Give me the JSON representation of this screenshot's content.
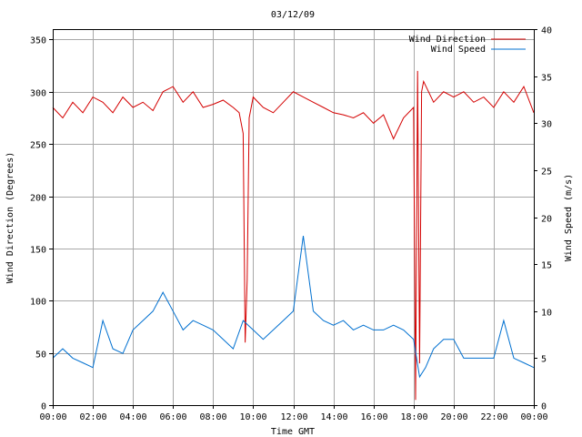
{
  "chart_data": {
    "type": "line",
    "title": "03/12/09",
    "xlabel": "Time GMT",
    "ylabel": "Wind Direction (Degrees)",
    "y2label": "Wind Speed (m/s)",
    "xlim": [
      0,
      24
    ],
    "ylim": [
      0,
      360
    ],
    "y2lim": [
      0,
      40
    ],
    "x_ticks": [
      "00:00",
      "02:00",
      "04:00",
      "06:00",
      "08:00",
      "10:00",
      "12:00",
      "14:00",
      "16:00",
      "18:00",
      "20:00",
      "22:00",
      "00:00"
    ],
    "y_ticks": [
      0,
      50,
      100,
      150,
      200,
      250,
      300,
      350
    ],
    "y2_ticks": [
      0,
      5,
      10,
      15,
      20,
      25,
      30,
      35,
      40
    ],
    "grid": true,
    "legend_position": "top-right",
    "series": [
      {
        "name": "Wind Direction",
        "axis": "left",
        "color": "#d40000",
        "x": [
          0,
          0.5,
          1,
          1.5,
          2,
          2.5,
          3,
          3.5,
          4,
          4.5,
          5,
          5.5,
          6,
          6.5,
          7,
          7.5,
          8,
          8.5,
          9,
          9.3,
          9.5,
          9.6,
          9.7,
          9.8,
          10,
          10.5,
          11,
          11.5,
          12,
          12.5,
          13,
          13.5,
          14,
          14.5,
          15,
          15.5,
          16,
          16.5,
          17,
          17.5,
          18,
          18.1,
          18.2,
          18.3,
          18.4,
          18.5,
          19,
          19.5,
          20,
          20.5,
          21,
          21.5,
          22,
          22.5,
          23,
          23.5,
          24
        ],
        "values": [
          285,
          275,
          290,
          280,
          295,
          290,
          280,
          295,
          285,
          290,
          282,
          300,
          305,
          290,
          300,
          285,
          288,
          292,
          285,
          280,
          260,
          60,
          120,
          275,
          295,
          285,
          280,
          290,
          300,
          295,
          290,
          285,
          280,
          278,
          275,
          280,
          270,
          278,
          255,
          275,
          285,
          5,
          320,
          40,
          300,
          310,
          290,
          300,
          295,
          300,
          290,
          295,
          285,
          300,
          290,
          305,
          280
        ]
      },
      {
        "name": "Wind Speed",
        "axis": "right",
        "color": "#0070d0",
        "x": [
          0,
          0.5,
          1,
          1.5,
          2,
          2.5,
          3,
          3.5,
          4,
          4.5,
          5,
          5.5,
          6,
          6.5,
          7,
          7.5,
          8,
          8.5,
          9,
          9.5,
          10,
          10.5,
          11,
          11.5,
          12,
          12.5,
          13,
          13.5,
          14,
          14.5,
          15,
          15.5,
          16,
          16.5,
          17,
          17.5,
          18,
          18.3,
          18.6,
          19,
          19.5,
          20,
          20.5,
          21,
          21.5,
          22,
          22.5,
          23,
          23.5,
          24
        ],
        "values": [
          5,
          6,
          5,
          4.5,
          4,
          9,
          6,
          5.5,
          8,
          9,
          10,
          12,
          10,
          8,
          9,
          8.5,
          8,
          7,
          6,
          9,
          8,
          7,
          8,
          9,
          10,
          18,
          10,
          9,
          8.5,
          9,
          8,
          8.5,
          8,
          8,
          8.5,
          8,
          7,
          3,
          4,
          6,
          7,
          7,
          5,
          5,
          5,
          5,
          9,
          5,
          4.5,
          4
        ]
      }
    ]
  }
}
